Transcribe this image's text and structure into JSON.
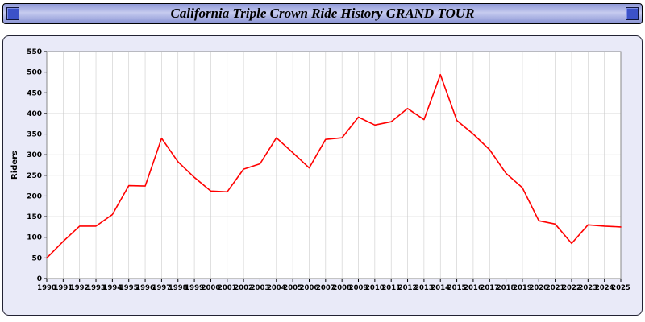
{
  "header": {
    "title": "California Triple Crown Ride History GRAND TOUR"
  },
  "chart_data": {
    "type": "line",
    "title": "California Triple Crown Ride History GRAND TOUR",
    "xlabel": "",
    "ylabel": "Riders",
    "ylim": [
      0,
      550
    ],
    "ytick_step": 50,
    "yticks": [
      0,
      50,
      100,
      150,
      200,
      250,
      300,
      350,
      400,
      450,
      500,
      550
    ],
    "grid": true,
    "legend": "none",
    "line_color": "#ff0000",
    "grid_color": "#cccccc",
    "plot_bg": "#ffffff",
    "panel_bg": "#e9eaf8",
    "x": [
      1990,
      1991,
      1992,
      1993,
      1994,
      1995,
      1996,
      1997,
      1998,
      1999,
      2000,
      2001,
      2002,
      2003,
      2004,
      2005,
      2006,
      2007,
      2008,
      2009,
      2010,
      2011,
      2012,
      2013,
      2014,
      2015,
      2016,
      2017,
      2018,
      2019,
      2020,
      2021,
      2022,
      2023,
      2024,
      2025
    ],
    "values": [
      50,
      90,
      127,
      127,
      155,
      225,
      224,
      340,
      283,
      245,
      212,
      210,
      265,
      278,
      341,
      305,
      268,
      337,
      341,
      391,
      372,
      380,
      412,
      385,
      494,
      383,
      350,
      312,
      255,
      220,
      140,
      132,
      85,
      130,
      127,
      125
    ]
  }
}
